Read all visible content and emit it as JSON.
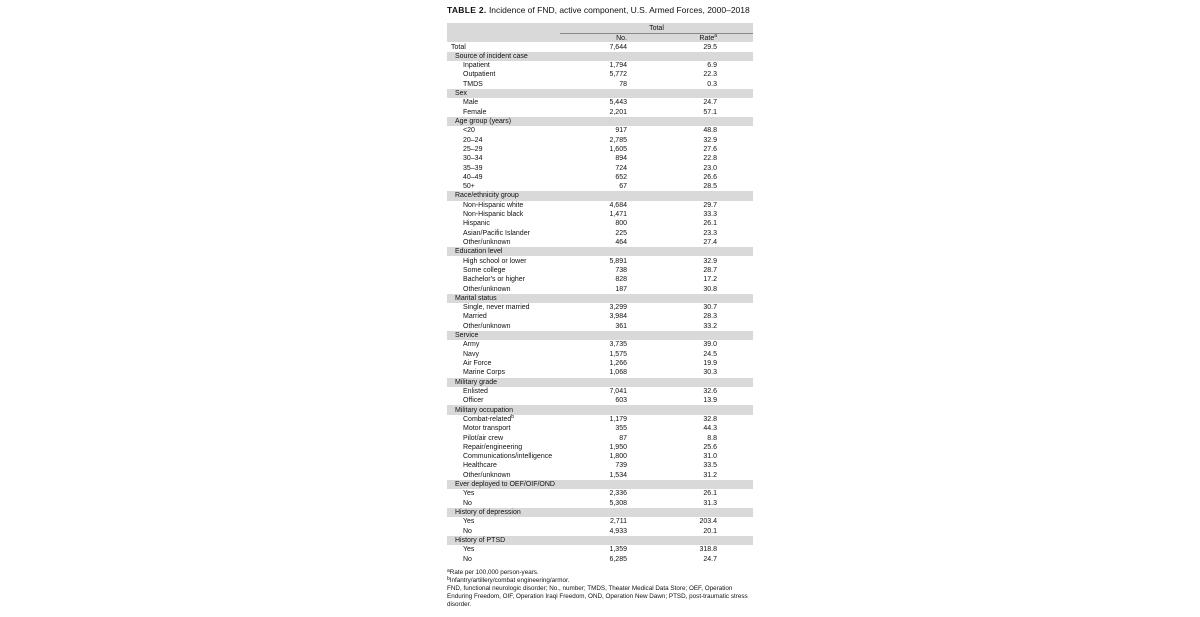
{
  "title": {
    "label": "TABLE 2.",
    "text": "Incidence of FND, active component, U.S. Armed Forces, 2000–2018"
  },
  "table": {
    "group_header": "Total",
    "columns": [
      "No.",
      "Rate"
    ],
    "rate_sup": "a",
    "total": {
      "label": "Total",
      "no": "7,644",
      "rate": "29.5"
    },
    "groups": [
      {
        "name": "Source of incident case",
        "rows": [
          {
            "label": "Inpatient",
            "no": "1,794",
            "rate": "6.9"
          },
          {
            "label": "Outpatient",
            "no": "5,772",
            "rate": "22.3"
          },
          {
            "label": "TMDS",
            "no": "78",
            "rate": "0.3"
          }
        ]
      },
      {
        "name": "Sex",
        "rows": [
          {
            "label": "Male",
            "no": "5,443",
            "rate": "24.7"
          },
          {
            "label": "Female",
            "no": "2,201",
            "rate": "57.1"
          }
        ]
      },
      {
        "name": "Age group (years)",
        "rows": [
          {
            "label": "<20",
            "no": "917",
            "rate": "48.8"
          },
          {
            "label": "20–24",
            "no": "2,785",
            "rate": "32.9"
          },
          {
            "label": "25–29",
            "no": "1,605",
            "rate": "27.6"
          },
          {
            "label": "30–34",
            "no": "894",
            "rate": "22.8"
          },
          {
            "label": "35–39",
            "no": "724",
            "rate": "23.0"
          },
          {
            "label": "40–49",
            "no": "652",
            "rate": "26.6"
          },
          {
            "label": "50+",
            "no": "67",
            "rate": "28.5"
          }
        ]
      },
      {
        "name": "Race/ethnicity group",
        "rows": [
          {
            "label": "Non-Hispanic white",
            "no": "4,684",
            "rate": "29.7"
          },
          {
            "label": "Non-Hispanic black",
            "no": "1,471",
            "rate": "33.3"
          },
          {
            "label": "Hispanic",
            "no": "800",
            "rate": "26.1"
          },
          {
            "label": "Asian/Pacific Islander",
            "no": "225",
            "rate": "23.3"
          },
          {
            "label": "Other/unknown",
            "no": "464",
            "rate": "27.4"
          }
        ]
      },
      {
        "name": "Education level",
        "rows": [
          {
            "label": "High school or lower",
            "no": "5,891",
            "rate": "32.9"
          },
          {
            "label": "Some college",
            "no": "738",
            "rate": "28.7"
          },
          {
            "label": "Bachelor's or higher",
            "no": "828",
            "rate": "17.2"
          },
          {
            "label": "Other/unknown",
            "no": "187",
            "rate": "30.8"
          }
        ]
      },
      {
        "name": "Marital status",
        "rows": [
          {
            "label": "Single, never married",
            "no": "3,299",
            "rate": "30.7"
          },
          {
            "label": "Married",
            "no": "3,984",
            "rate": "28.3"
          },
          {
            "label": "Other/unknown",
            "no": "361",
            "rate": "33.2"
          }
        ]
      },
      {
        "name": "Service",
        "rows": [
          {
            "label": "Army",
            "no": "3,735",
            "rate": "39.0"
          },
          {
            "label": "Navy",
            "no": "1,575",
            "rate": "24.5"
          },
          {
            "label": "Air Force",
            "no": "1,266",
            "rate": "19.9"
          },
          {
            "label": "Marine Corps",
            "no": "1,068",
            "rate": "30.3"
          }
        ]
      },
      {
        "name": "Military grade",
        "rows": [
          {
            "label": "Enlisted",
            "no": "7,041",
            "rate": "32.6"
          },
          {
            "label": "Officer",
            "no": "603",
            "rate": "13.9"
          }
        ]
      },
      {
        "name": "Military occupation",
        "rows": [
          {
            "label": "Combat-related",
            "sup": "b",
            "no": "1,179",
            "rate": "32.8"
          },
          {
            "label": "Motor transport",
            "no": "355",
            "rate": "44.3"
          },
          {
            "label": "Pilot/air crew",
            "no": "87",
            "rate": "8.8"
          },
          {
            "label": "Repair/engineering",
            "no": "1,950",
            "rate": "25.6"
          },
          {
            "label": "Communications/intelligence",
            "no": "1,800",
            "rate": "31.0"
          },
          {
            "label": "Healthcare",
            "no": "739",
            "rate": "33.5"
          },
          {
            "label": "Other/unknown",
            "no": "1,534",
            "rate": "31.2"
          }
        ]
      },
      {
        "name": "Ever deployed to OEF/OIF/OND",
        "rows": [
          {
            "label": "Yes",
            "no": "2,336",
            "rate": "26.1"
          },
          {
            "label": "No",
            "no": "5,308",
            "rate": "31.3"
          }
        ]
      },
      {
        "name": "History of depression",
        "rows": [
          {
            "label": "Yes",
            "no": "2,711",
            "rate": "203.4"
          },
          {
            "label": "No",
            "no": "4,933",
            "rate": "20.1"
          }
        ]
      },
      {
        "name": "History of PTSD",
        "rows": [
          {
            "label": "Yes",
            "no": "1,359",
            "rate": "318.8"
          },
          {
            "label": "No",
            "no": "6,285",
            "rate": "24.7"
          }
        ]
      }
    ]
  },
  "footnotes": [
    {
      "mark": "a",
      "text": "Rate per 100,000 person-years."
    },
    {
      "mark": "b",
      "text": "Infantry/artillery/combat engineering/armor."
    },
    {
      "text": "FND, functional neurologic disorder; No., number; TMDS, Theater Medical Data Store; OEF, Operation Enduring Freedom, OIF, Operation Iraqi Freedom, OND, Operation New Dawn; PTSD, post-traumatic stress disorder."
    }
  ]
}
